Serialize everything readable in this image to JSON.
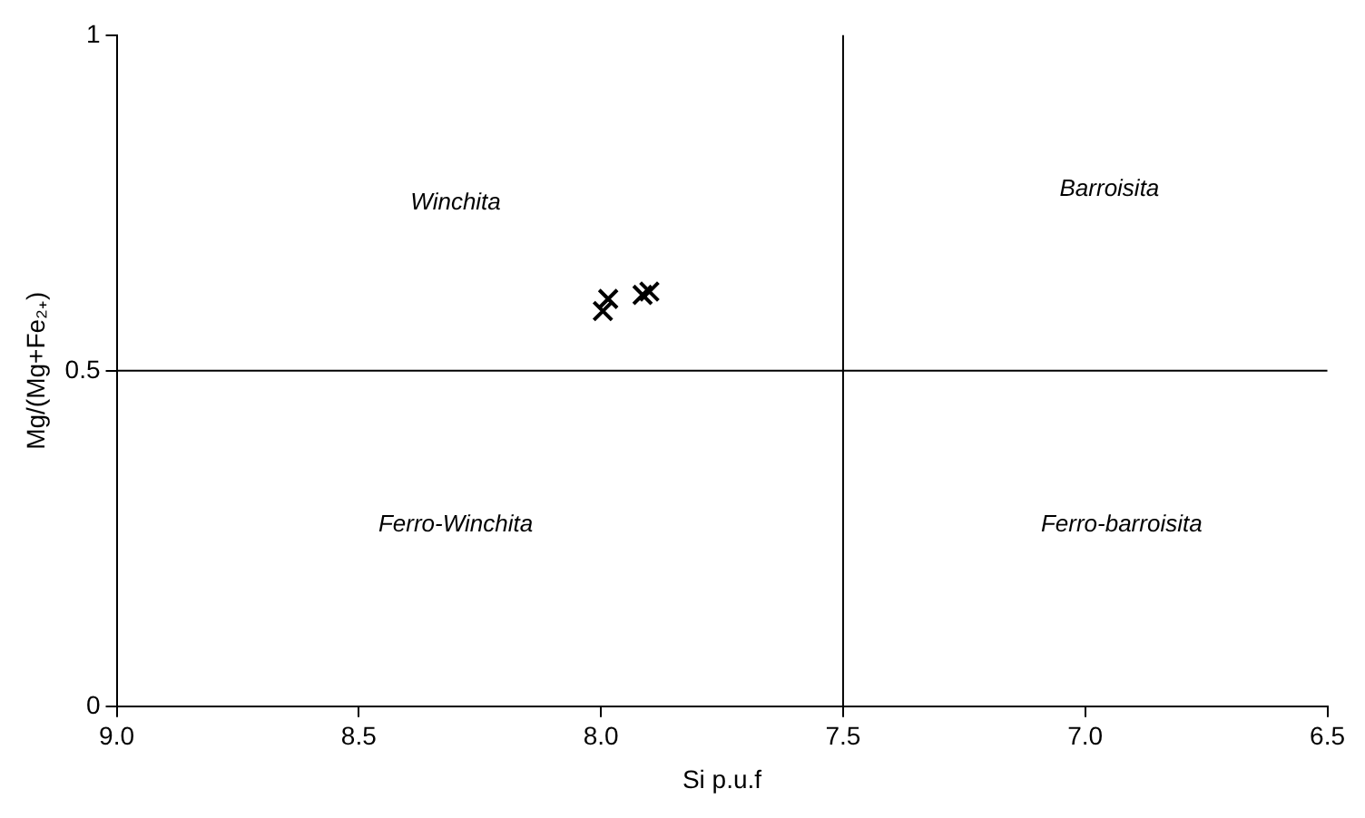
{
  "chart_data": {
    "type": "scatter",
    "xlabel": "Si p.u.f",
    "ylabel": "Mg/(Mg+Fe₂₊)",
    "x": [
      7.996,
      7.985,
      7.914,
      7.9
    ],
    "series": [
      {
        "color": "#000000",
        "values": [
          0.589,
          0.607,
          0.613,
          0.618
        ]
      }
    ],
    "marker": "cross",
    "grid": false,
    "legend": false,
    "xlim": [
      9.0,
      6.5
    ],
    "xticks": [
      {
        "value": 9,
        "label": "9.0"
      },
      {
        "value": 8.5,
        "label": "8.5"
      },
      {
        "value": 8,
        "label": "8.0"
      },
      {
        "value": 7.5,
        "label": "7.5"
      },
      {
        "value": 7,
        "label": "7.0"
      },
      {
        "value": 6.5,
        "label": "6.5"
      }
    ],
    "ylim": [
      0,
      1
    ],
    "yticks": [
      0,
      0.5,
      1
    ],
    "ref_lines": [
      {
        "axis": "x",
        "value": 7.5,
        "color": "#000000"
      },
      {
        "axis": "y",
        "value": 0.5,
        "color": "#000000"
      }
    ],
    "annotations": [
      "Winchita",
      "Barroisita",
      "Ferro-Winchita",
      "Ferro-barroisita"
    ]
  }
}
